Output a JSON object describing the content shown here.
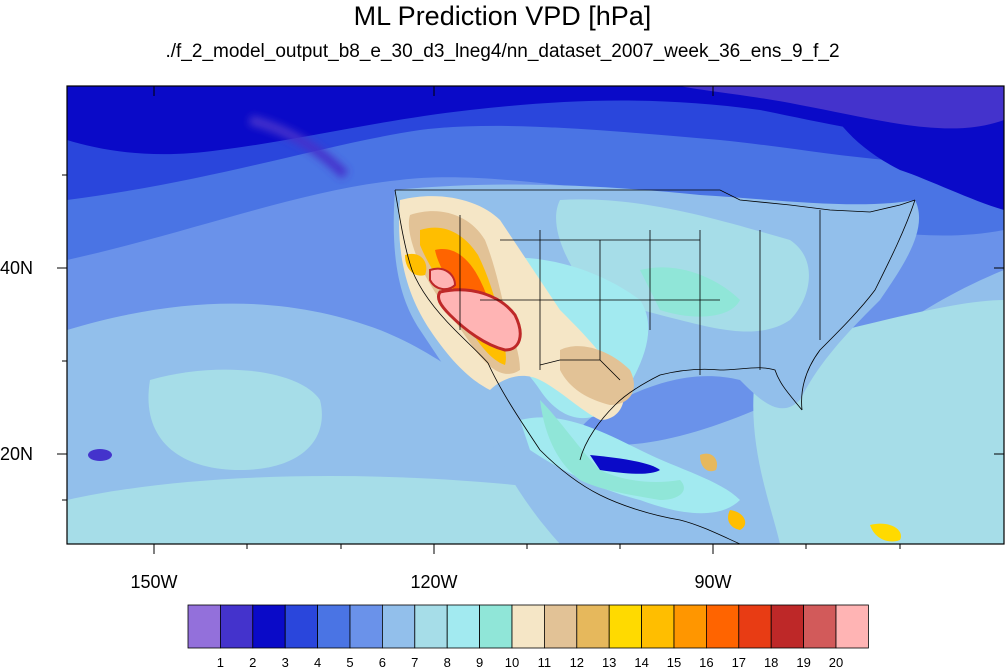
{
  "title": "ML Prediction VPD [hPa]",
  "subtitle": "./f_2_model_output_b8_e_30_d3_lneg4/nn_dataset_2007_week_36_ens_9_f_2",
  "lat_labels": [
    "40N",
    "20N"
  ],
  "lon_labels": [
    "150W",
    "120W",
    "90W"
  ],
  "colorbar": {
    "labels": [
      "1",
      "2",
      "3",
      "4",
      "5",
      "6",
      "7",
      "8",
      "9",
      "10",
      "11",
      "12",
      "13",
      "14",
      "15",
      "16",
      "17",
      "18",
      "19",
      "20"
    ],
    "colors": [
      "#9370db",
      "#4433cc",
      "#0a0ac8",
      "#2a46dc",
      "#4a74e4",
      "#6a92ea",
      "#92bfeb",
      "#a6dde8",
      "#a2eaf0",
      "#90e6d8",
      "#f5e6c6",
      "#e2c296",
      "#e6b85c",
      "#ffda00",
      "#ffbe00",
      "#ff9600",
      "#ff6400",
      "#e83c14",
      "#be2828",
      "#d25a5a",
      "#ffb4b4"
    ]
  }
}
